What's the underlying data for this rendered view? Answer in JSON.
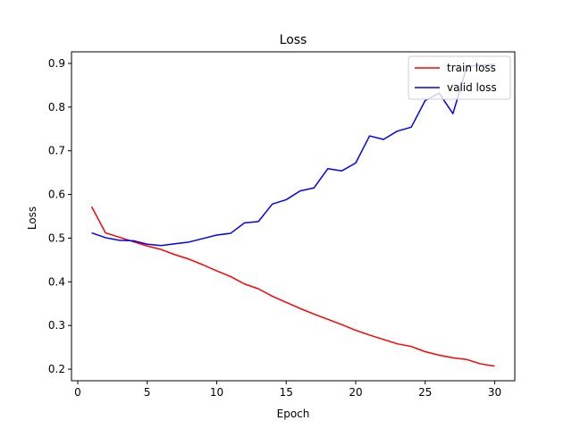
{
  "chart_data": {
    "type": "line",
    "title": "Loss",
    "xlabel": "Epoch",
    "ylabel": "Loss",
    "xlim": [
      -0.45,
      31.45
    ],
    "ylim": [
      0.1735,
      0.9265
    ],
    "x_ticks": [
      0,
      5,
      10,
      15,
      20,
      25,
      30
    ],
    "y_ticks": [
      0.2,
      0.3,
      0.4,
      0.5,
      0.6,
      0.7,
      0.8,
      0.9
    ],
    "grid": false,
    "legend_position": "top-right",
    "x": [
      1,
      2,
      3,
      4,
      5,
      6,
      7,
      8,
      9,
      10,
      11,
      12,
      13,
      14,
      15,
      16,
      17,
      18,
      19,
      20,
      21,
      22,
      23,
      24,
      25,
      26,
      27,
      28,
      29,
      30
    ],
    "series": [
      {
        "name": "train loss",
        "color": "#ff0000",
        "values": [
          0.572,
          0.512,
          0.502,
          0.492,
          0.482,
          0.474,
          0.462,
          0.452,
          0.439,
          0.425,
          0.412,
          0.395,
          0.384,
          0.367,
          0.353,
          0.339,
          0.326,
          0.314,
          0.302,
          0.289,
          0.278,
          0.268,
          0.258,
          0.252,
          0.24,
          0.232,
          0.226,
          0.222,
          0.212,
          0.207
        ]
      },
      {
        "name": "valid loss",
        "color": "#0000ff",
        "values": [
          0.512,
          0.501,
          0.495,
          0.494,
          0.486,
          0.483,
          0.487,
          0.491,
          0.499,
          0.507,
          0.511,
          0.535,
          0.538,
          0.578,
          0.588,
          0.608,
          0.615,
          0.659,
          0.654,
          0.672,
          0.734,
          0.726,
          0.745,
          0.754,
          0.815,
          0.832,
          0.785,
          0.893,
          0.896,
          0.898
        ]
      }
    ]
  }
}
